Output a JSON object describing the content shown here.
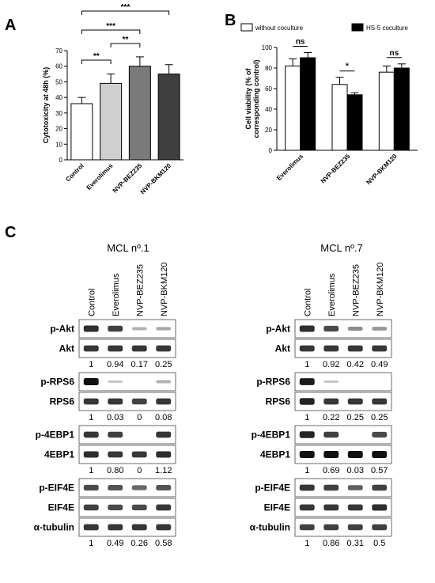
{
  "panel_letters": {
    "a": "A",
    "b": "B",
    "c": "C"
  },
  "chart_data": [
    {
      "type": "bar",
      "panel": "A",
      "ylabel": "Cytotoxicity at 48h (%)",
      "ylim": [
        0,
        70
      ],
      "yticks": [
        "0",
        "10",
        "20",
        "30",
        "40",
        "50",
        "60",
        "70"
      ],
      "categories": [
        "Control",
        "Everolimus",
        "NVP-BEZ235",
        "NVP-BKM120"
      ],
      "values": [
        36,
        49,
        60,
        55
      ],
      "errors": [
        4,
        6,
        6,
        6
      ],
      "bar_colors": [
        "#ffffff",
        "#cfcfcf",
        "#7a7a7a",
        "#3f3f3f"
      ],
      "significance": [
        {
          "from": 0,
          "to": 3,
          "label": "***"
        },
        {
          "from": 0,
          "to": 2,
          "label": "***"
        },
        {
          "from": 1,
          "to": 2,
          "label": "**"
        },
        {
          "from": 0,
          "to": 1,
          "label": "**"
        }
      ]
    },
    {
      "type": "bar",
      "panel": "B",
      "ylabel": "Cell viability (% of corresponding control)",
      "ylabel_lines": [
        "Cell viability (% of",
        "corresponding control)"
      ],
      "ylim": [
        0,
        100
      ],
      "yticks": [
        "0",
        "20",
        "40",
        "60",
        "80",
        "100"
      ],
      "categories": [
        "Everolimus",
        "NVP-BEZ235",
        "NVP-BKM120"
      ],
      "series": [
        {
          "name": "without coculture",
          "color": "#ffffff",
          "values": [
            82,
            64,
            76
          ],
          "errors": [
            7,
            7,
            6
          ]
        },
        {
          "name": "HS-5 coculture",
          "color": "#000000",
          "values": [
            90,
            54,
            80
          ],
          "errors": [
            5,
            2,
            4
          ]
        }
      ],
      "significance": [
        "ns",
        "*",
        "ns"
      ],
      "legend_position": "top"
    }
  ],
  "blots": {
    "lanes": [
      "Control",
      "Everolimus",
      "NVP-BEZ235",
      "NVP-BKM120"
    ],
    "left": {
      "title": "MCL nº.1",
      "groups": [
        {
          "rows": [
            {
              "label": "p-Akt",
              "intensity": [
                0.85,
                0.75,
                0.15,
                0.2
              ]
            },
            {
              "label": "Akt",
              "intensity": [
                0.8,
                0.8,
                0.8,
                0.8
              ]
            }
          ],
          "numbers": [
            "1",
            "0.94",
            "0.17",
            "0.25"
          ]
        },
        {
          "rows": [
            {
              "label": "p-RPS6",
              "intensity": [
                1.0,
                0.05,
                0.03,
                0.15
              ]
            },
            {
              "label": "RPS6",
              "intensity": [
                0.8,
                0.8,
                0.75,
                0.8
              ]
            }
          ],
          "numbers": [
            "1",
            "0.03",
            "0",
            "0.08"
          ]
        },
        {
          "rows": [
            {
              "label": "p-4EBP1",
              "intensity": [
                0.8,
                0.75,
                0.03,
                0.8
              ]
            },
            {
              "label": "4EBP1",
              "intensity": [
                0.85,
                0.8,
                0.8,
                0.85
              ]
            }
          ],
          "numbers": [
            "1",
            "0.80",
            "0",
            "1.12"
          ]
        },
        {
          "rows": [
            {
              "label": "p-EIF4E",
              "intensity": [
                0.7,
                0.65,
                0.55,
                0.65
              ]
            },
            {
              "label": "EIF4E",
              "intensity": [
                0.75,
                0.7,
                0.7,
                0.8
              ]
            },
            {
              "label": "α-tubulin",
              "intensity": [
                0.8,
                0.8,
                0.8,
                0.8
              ]
            }
          ],
          "numbers": [
            "1",
            "0.49",
            "0.26",
            "0.58"
          ]
        }
      ]
    },
    "right": {
      "title": "MCL nº.7",
      "groups": [
        {
          "rows": [
            {
              "label": "p-Akt",
              "intensity": [
                0.85,
                0.7,
                0.35,
                0.3
              ]
            },
            {
              "label": "Akt",
              "intensity": [
                0.8,
                0.8,
                0.8,
                0.8
              ]
            }
          ],
          "numbers": [
            "1",
            "0.92",
            "0.42",
            "0.49"
          ]
        },
        {
          "rows": [
            {
              "label": "p-RPS6",
              "intensity": [
                0.95,
                0.05,
                0.03,
                0.03
              ]
            },
            {
              "label": "RPS6",
              "intensity": [
                0.9,
                0.8,
                0.8,
                0.8
              ]
            }
          ],
          "numbers": [
            "1",
            "0.22",
            "0.25",
            "0.25"
          ]
        },
        {
          "rows": [
            {
              "label": "p-4EBP1",
              "intensity": [
                0.9,
                0.75,
                0.03,
                0.7
              ]
            },
            {
              "label": "4EBP1",
              "intensity": [
                1.0,
                1.0,
                1.0,
                1.0
              ]
            }
          ],
          "numbers": [
            "1",
            "0.69",
            "0.03",
            "0.57"
          ]
        },
        {
          "rows": [
            {
              "label": "p-EIF4E",
              "intensity": [
                0.8,
                0.75,
                0.6,
                0.75
              ]
            },
            {
              "label": "EIF4E",
              "intensity": [
                0.8,
                0.8,
                0.8,
                0.85
              ]
            },
            {
              "label": "α-tubulin",
              "intensity": [
                0.75,
                0.75,
                0.75,
                0.75
              ]
            }
          ],
          "numbers": [
            "1",
            "0.86",
            "0.31",
            "0.5"
          ]
        }
      ]
    }
  }
}
